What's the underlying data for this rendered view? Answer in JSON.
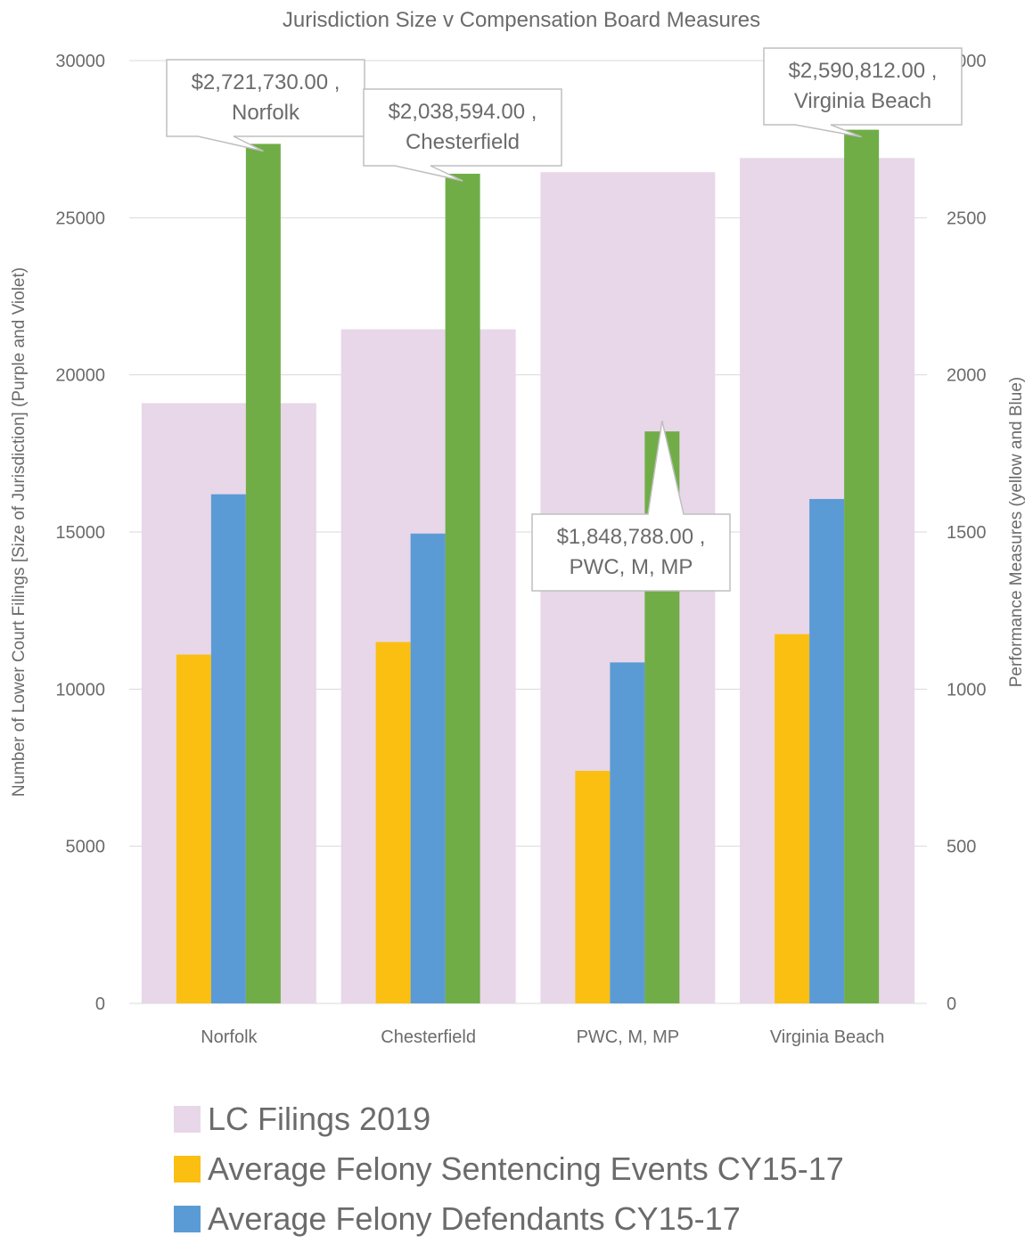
{
  "chart_data": {
    "type": "bar",
    "title": "Jurisdiction Size v Compensation Board Measures",
    "categories": [
      "Norfolk",
      "Chesterfield",
      "PWC, M, MP",
      "Virginia Beach"
    ],
    "y_left": {
      "label": "Number of Lower Court Filings [Size of Jurisdiction] (Purple and Violet)",
      "min": 0,
      "max": 30000,
      "ticks": [
        "0",
        "5000",
        "10000",
        "15000",
        "20000",
        "25000",
        "30000"
      ]
    },
    "y_right": {
      "label": "Performance Measures (yellow and Blue)",
      "min": 0,
      "max": 3000,
      "ticks": [
        "0",
        "500",
        "1000",
        "1500",
        "2000",
        "2500",
        "3000"
      ]
    },
    "grid": true,
    "legend_position": "bottom",
    "series": [
      {
        "name": "LC Filings 2019",
        "axis": "left",
        "color": "#e8d6e9",
        "values": [
          19100,
          21450,
          26450,
          26900
        ]
      },
      {
        "name": "Average Felony Sentencing Events CY15-17",
        "axis": "right",
        "color": "#fbbf12",
        "values": [
          1110,
          1150,
          740,
          1175
        ]
      },
      {
        "name": "Average Felony Defendants CY15-17",
        "axis": "right",
        "color": "#5b9bd5",
        "values": [
          1620,
          1495,
          1085,
          1605
        ]
      },
      {
        "name": "",
        "axis": "left",
        "color": "#70ad47",
        "values": [
          27350,
          26400,
          18200,
          27800
        ]
      }
    ],
    "annotations": [
      {
        "category": "Norfolk",
        "lines": [
          "$2,721,730.00 ,",
          "Norfolk"
        ]
      },
      {
        "category": "Chesterfield",
        "lines": [
          "$2,038,594.00 ,",
          "Chesterfield"
        ]
      },
      {
        "category": "PWC, M, MP",
        "lines": [
          "$1,848,788.00 ,",
          "PWC, M, MP"
        ]
      },
      {
        "category": "Virginia Beach",
        "lines": [
          "$2,590,812.00 ,",
          "Virginia Beach"
        ]
      }
    ]
  }
}
